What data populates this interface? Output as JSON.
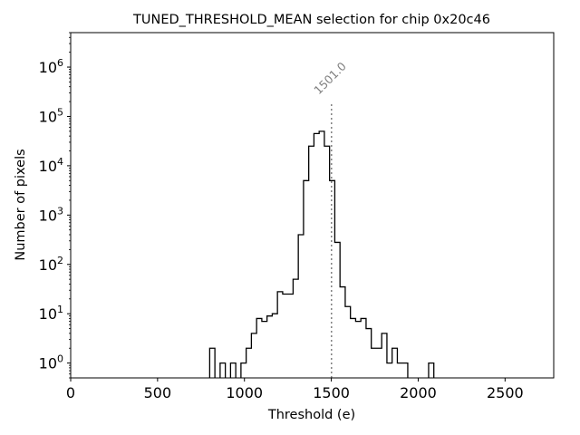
{
  "chart_data": {
    "type": "histogram",
    "title": "TUNED_THRESHOLD_MEAN selection for chip 0x20c46",
    "xlabel": "Threshold (e)",
    "ylabel": "Number of pixels",
    "xlim": [
      0,
      2780
    ],
    "ylim": [
      0.5,
      5000000
    ],
    "yscale": "log",
    "grid": false,
    "xticks": [
      0,
      500,
      1000,
      1500,
      2000,
      2500
    ],
    "yticks": [
      1,
      10,
      100,
      1000,
      10000,
      100000,
      1000000
    ],
    "bin_width": 30,
    "bin_start": 800,
    "counts": [
      2,
      0,
      1,
      0,
      1,
      0,
      1,
      2,
      4,
      8,
      7,
      9,
      10,
      28,
      25,
      25,
      50,
      400,
      5000,
      25000,
      45000,
      50000,
      25000,
      5000,
      280,
      35,
      14,
      8,
      7,
      8,
      5,
      2,
      2,
      4,
      1,
      2,
      1,
      1,
      0,
      0,
      0,
      0,
      1
    ],
    "vline": {
      "x": 1501.0,
      "label": "1501.0",
      "color": "#808080"
    }
  }
}
